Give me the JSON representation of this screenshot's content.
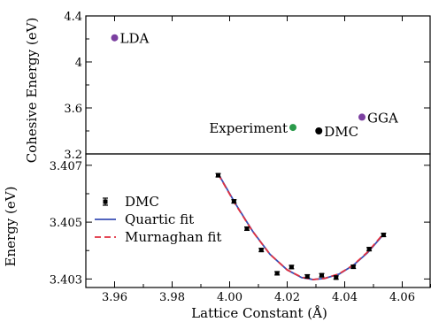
{
  "chart_data": [
    {
      "type": "scatter",
      "ylabel": "Cohesive Energy (eV)",
      "xlim": [
        3.95,
        4.07
      ],
      "ylim": [
        3.2,
        4.4
      ],
      "yticks": [
        3.2,
        3.6,
        4.0,
        4.4
      ],
      "ytick_labels": [
        "3.2",
        "3.6",
        "4",
        "4.4"
      ],
      "points": [
        {
          "label": "LDA",
          "x": 3.96,
          "y": 4.21,
          "color": "#7b3fa0",
          "label_side": "right"
        },
        {
          "label": "Experiment",
          "x": 4.022,
          "y": 3.43,
          "color": "#2a9a4a",
          "label_side": "left"
        },
        {
          "label": "DMC",
          "x": 4.031,
          "y": 3.4,
          "color": "#000000",
          "label_side": "right"
        },
        {
          "label": "GGA",
          "x": 4.046,
          "y": 3.52,
          "color": "#7b3fa0",
          "label_side": "right"
        }
      ]
    },
    {
      "type": "line",
      "ylabel": "Energy (eV)",
      "xlabel": "Lattice Constant (Å)",
      "xlim": [
        3.95,
        4.07
      ],
      "ylim": [
        3.4027,
        3.4074
      ],
      "xticks": [
        3.96,
        3.98,
        4.0,
        4.02,
        4.04,
        4.06
      ],
      "xtick_labels": [
        "3.96",
        "3.98",
        "4.00",
        "4.02",
        "4.04",
        "4.06"
      ],
      "yticks": [
        3.403,
        3.405,
        3.407
      ],
      "ytick_labels": [
        "3.403",
        "3.405",
        "3.407"
      ],
      "legend": {
        "position": "upper-left",
        "entries": [
          "DMC",
          "Quartic fit",
          "Murnaghan fit"
        ]
      },
      "series": [
        {
          "name": "DMC",
          "kind": "errorbar",
          "color": "#000000",
          "x": [
            3.996,
            4.0015,
            4.006,
            4.011,
            4.0165,
            4.0215,
            4.027,
            4.032,
            4.037,
            4.043,
            4.0485,
            4.0535
          ],
          "y": [
            3.40665,
            3.40573,
            3.40477,
            3.40402,
            3.4032,
            3.40342,
            3.40309,
            3.40313,
            3.40305,
            3.40343,
            3.40405,
            3.40455
          ],
          "err": [
            6e-05,
            6e-05,
            6e-05,
            6e-05,
            6e-05,
            6e-05,
            6e-05,
            6e-05,
            6e-05,
            6e-05,
            6e-05,
            6e-05
          ]
        },
        {
          "name": "Quartic fit",
          "kind": "line",
          "color": "#3a4fb5",
          "dash": "solid",
          "x": [
            3.996,
            4.002,
            4.008,
            4.014,
            4.02,
            4.025,
            4.029,
            4.033,
            4.038,
            4.043,
            4.048,
            4.0535
          ],
          "y": [
            3.40671,
            3.40565,
            3.40468,
            3.40387,
            3.40332,
            3.40305,
            3.40298,
            3.40302,
            3.40317,
            3.40348,
            3.40393,
            3.40457
          ]
        },
        {
          "name": "Murnaghan fit",
          "kind": "line",
          "color": "#e03040",
          "dash": "dashed",
          "x": [
            3.996,
            4.002,
            4.008,
            4.014,
            4.02,
            4.025,
            4.029,
            4.033,
            4.038,
            4.043,
            4.048,
            4.0535
          ],
          "y": [
            3.40669,
            3.40563,
            3.40467,
            3.40387,
            3.40332,
            3.40306,
            3.40298,
            3.40302,
            3.40318,
            3.40349,
            3.40395,
            3.4046
          ]
        }
      ]
    }
  ]
}
